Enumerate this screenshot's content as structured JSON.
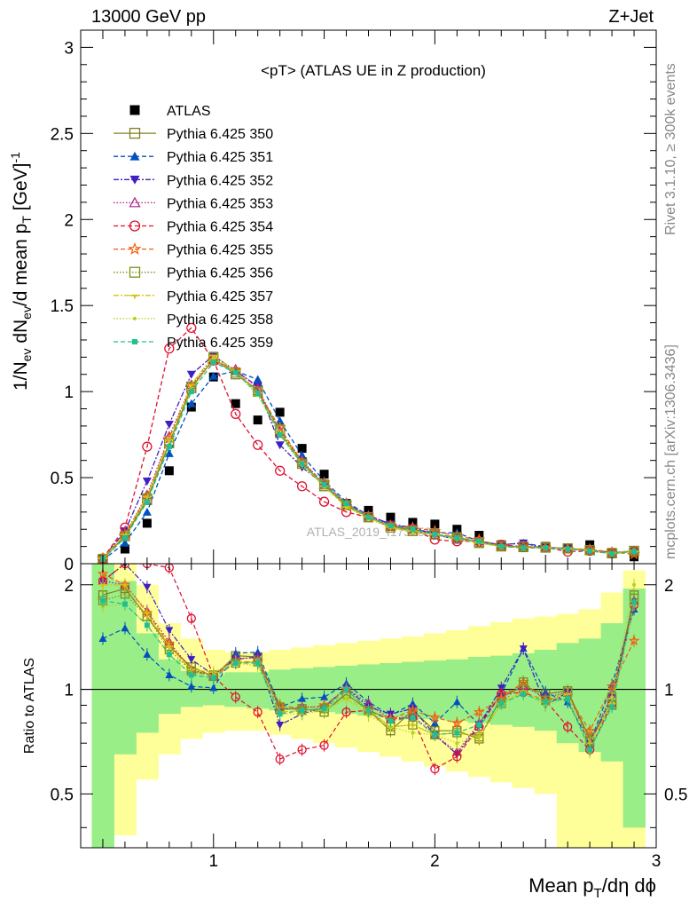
{
  "header": {
    "left": "13000 GeV pp",
    "right": "Z+Jet"
  },
  "side": {
    "top": "Rivet 3.1.10, ≥ 300k events",
    "bottom": "mcplots.cern.ch [arXiv:1306.3436]"
  },
  "watermark": "ATLAS_2019_I1736531",
  "chart_data": [
    {
      "type": "line",
      "title": "<pT> (ATLAS UE in Z production)",
      "ylabel": "1/N_ev dN_ev/d mean p_T [GeV]^-1",
      "xlim": [
        0.4,
        3.0
      ],
      "ylim": [
        0,
        3.1
      ],
      "yticks": [
        "0",
        "0.5",
        "1",
        "1.5",
        "2",
        "2.5",
        "3"
      ],
      "x": [
        0.5,
        0.6,
        0.7,
        0.8,
        0.9,
        1.0,
        1.1,
        1.2,
        1.3,
        1.4,
        1.5,
        1.6,
        1.7,
        1.8,
        1.9,
        2.0,
        2.1,
        2.2,
        2.3,
        2.4,
        2.5,
        2.6,
        2.7,
        2.8,
        2.9
      ],
      "series": [
        {
          "name": "ATLAS",
          "color": "#000000",
          "marker": "square-filled",
          "dash": "none",
          "values": [
            0.015,
            0.085,
            0.235,
            0.54,
            0.91,
            1.085,
            0.93,
            0.835,
            0.88,
            0.67,
            0.52,
            0.35,
            0.31,
            0.27,
            0.24,
            0.23,
            0.2,
            0.165,
            0.11,
            0.095,
            0.1,
            0.09,
            0.11,
            0.065,
            0.04
          ]
        },
        {
          "name": "Pythia 6.425 350",
          "color": "#808020",
          "marker": "square-open",
          "dash": "none",
          "values": [
            0.028,
            0.16,
            0.37,
            0.7,
            1.02,
            1.19,
            1.1,
            1.01,
            0.76,
            0.59,
            0.45,
            0.34,
            0.27,
            0.22,
            0.19,
            0.17,
            0.155,
            0.125,
            0.105,
            0.096,
            0.094,
            0.089,
            0.079,
            0.06,
            0.075
          ]
        },
        {
          "name": "Pythia 6.425 351",
          "color": "#0050c0",
          "marker": "triangle-up",
          "dash": "5,3",
          "values": [
            0.021,
            0.12,
            0.3,
            0.64,
            0.93,
            1.09,
            1.12,
            1.07,
            0.83,
            0.63,
            0.48,
            0.36,
            0.28,
            0.23,
            0.2,
            0.18,
            0.18,
            0.13,
            0.11,
            0.12,
            0.098,
            0.084,
            0.077,
            0.067,
            0.068
          ]
        },
        {
          "name": "Pythia 6.425 352",
          "color": "#4020c0",
          "marker": "triangle-down",
          "dash": "6,2,2,2",
          "values": [
            0.03,
            0.19,
            0.48,
            0.81,
            1.1,
            1.21,
            1.12,
            1.03,
            0.69,
            0.56,
            0.46,
            0.35,
            0.28,
            0.23,
            0.21,
            0.17,
            0.14,
            0.13,
            0.11,
            0.12,
            0.089,
            0.088,
            0.077,
            0.062,
            0.07
          ]
        },
        {
          "name": "Pythia 6.425 353",
          "color": "#b0208c",
          "marker": "triangle-open",
          "dash": "1.5,2",
          "values": [
            0.03,
            0.17,
            0.4,
            0.74,
            1.04,
            1.18,
            1.13,
            1.02,
            0.77,
            0.6,
            0.46,
            0.35,
            0.28,
            0.22,
            0.2,
            0.17,
            0.14,
            0.13,
            0.105,
            0.1,
            0.095,
            0.088,
            0.077,
            0.063,
            0.072
          ]
        },
        {
          "name": "Pythia 6.425 354",
          "color": "#e01030",
          "marker": "circle-open",
          "dash": "5,3",
          "values": [
            0.03,
            0.21,
            0.68,
            1.25,
            1.37,
            1.18,
            0.87,
            0.69,
            0.54,
            0.45,
            0.36,
            0.3,
            0.27,
            0.22,
            0.2,
            0.14,
            0.13,
            0.13,
            0.11,
            0.098,
            0.095,
            0.07,
            0.074,
            0.059,
            0.071
          ]
        },
        {
          "name": "Pythia 6.425 355",
          "color": "#f06010",
          "marker": "star-open",
          "dash": "5,3",
          "values": [
            0.032,
            0.17,
            0.39,
            0.73,
            1.03,
            1.18,
            1.12,
            1.0,
            0.79,
            0.59,
            0.47,
            0.35,
            0.27,
            0.22,
            0.21,
            0.19,
            0.16,
            0.14,
            0.1,
            0.1,
            0.093,
            0.086,
            0.084,
            0.067,
            0.055
          ]
        },
        {
          "name": "Pythia 6.425 356",
          "color": "#80901c",
          "marker": "square-open",
          "dash": "1.5,2",
          "values": [
            0.027,
            0.16,
            0.38,
            0.7,
            1.03,
            1.2,
            1.11,
            1.0,
            0.78,
            0.58,
            0.46,
            0.34,
            0.27,
            0.21,
            0.19,
            0.17,
            0.15,
            0.12,
            0.1,
            0.1,
            0.093,
            0.088,
            0.078,
            0.062,
            0.073
          ]
        },
        {
          "name": "Pythia 6.425 357",
          "color": "#d8c010",
          "marker": "tri-mark",
          "dash": "6,2,2,2",
          "values": [
            0.03,
            0.17,
            0.39,
            0.72,
            1.04,
            1.21,
            1.12,
            0.99,
            0.76,
            0.58,
            0.45,
            0.33,
            0.27,
            0.21,
            0.19,
            0.17,
            0.15,
            0.12,
            0.1,
            0.094,
            0.092,
            0.087,
            0.077,
            0.059,
            0.07
          ]
        },
        {
          "name": "Pythia 6.425 358",
          "color": "#b8d020",
          "marker": "dot",
          "dash": "1.5,2",
          "values": [
            0.026,
            0.15,
            0.36,
            0.68,
            1.01,
            1.19,
            1.11,
            0.98,
            0.75,
            0.57,
            0.45,
            0.33,
            0.26,
            0.21,
            0.18,
            0.17,
            0.14,
            0.12,
            0.1,
            0.093,
            0.09,
            0.085,
            0.073,
            0.062,
            0.08
          ]
        },
        {
          "name": "Pythia 6.425 359",
          "color": "#20c090",
          "marker": "square-small",
          "dash": "5,3",
          "values": [
            0.027,
            0.15,
            0.36,
            0.68,
            1.0,
            1.17,
            1.11,
            0.99,
            0.75,
            0.58,
            0.46,
            0.35,
            0.27,
            0.22,
            0.2,
            0.17,
            0.15,
            0.13,
            0.1,
            0.092,
            0.092,
            0.085,
            0.074,
            0.058,
            0.071
          ]
        }
      ]
    },
    {
      "type": "line",
      "ylabel": "Ratio to ATLAS",
      "xlabel": "Mean p_T/dη dϕ",
      "xlim": [
        0.4,
        3.0
      ],
      "ylim": [
        0.35,
        2.3
      ],
      "yticks": [
        "0.5",
        "1",
        "2"
      ],
      "xticks": [
        "1",
        "2",
        "3"
      ],
      "band_edges": [
        0.45,
        0.55,
        0.65,
        0.75,
        0.85,
        0.95,
        1.05,
        1.15,
        1.25,
        1.35,
        1.45,
        1.55,
        1.65,
        1.75,
        1.85,
        1.95,
        2.05,
        2.15,
        2.25,
        2.35,
        2.45,
        2.55,
        2.65,
        2.75,
        2.85,
        2.95
      ],
      "band_stat": [
        [
          0.35,
          2.3
        ],
        [
          0.65,
          2.05
        ],
        [
          0.75,
          1.45
        ],
        [
          0.85,
          1.22
        ],
        [
          0.89,
          1.13
        ],
        [
          0.9,
          1.1
        ],
        [
          0.89,
          1.12
        ],
        [
          0.88,
          1.12
        ],
        [
          0.87,
          1.14
        ],
        [
          0.87,
          1.15
        ],
        [
          0.86,
          1.16
        ],
        [
          0.85,
          1.17
        ],
        [
          0.84,
          1.18
        ],
        [
          0.83,
          1.19
        ],
        [
          0.82,
          1.2
        ],
        [
          0.82,
          1.21
        ],
        [
          0.81,
          1.22
        ],
        [
          0.8,
          1.24
        ],
        [
          0.79,
          1.25
        ],
        [
          0.78,
          1.27
        ],
        [
          0.76,
          1.3
        ],
        [
          0.7,
          1.36
        ],
        [
          0.66,
          1.4
        ],
        [
          0.62,
          1.55
        ],
        [
          0.4,
          1.95
        ]
      ],
      "band_total": [
        [
          0.35,
          2.3
        ],
        [
          0.38,
          2.3
        ],
        [
          0.55,
          2.0
        ],
        [
          0.65,
          1.55
        ],
        [
          0.72,
          1.4
        ],
        [
          0.75,
          1.3
        ],
        [
          0.76,
          1.28
        ],
        [
          0.76,
          1.28
        ],
        [
          0.74,
          1.3
        ],
        [
          0.72,
          1.32
        ],
        [
          0.7,
          1.34
        ],
        [
          0.68,
          1.36
        ],
        [
          0.66,
          1.38
        ],
        [
          0.64,
          1.4
        ],
        [
          0.62,
          1.42
        ],
        [
          0.6,
          1.45
        ],
        [
          0.58,
          1.48
        ],
        [
          0.56,
          1.52
        ],
        [
          0.54,
          1.56
        ],
        [
          0.52,
          1.6
        ],
        [
          0.5,
          1.62
        ],
        [
          0.35,
          1.65
        ],
        [
          0.35,
          1.7
        ],
        [
          0.35,
          1.9
        ],
        [
          0.35,
          2.2
        ]
      ],
      "series": [
        {
          "name": "Pythia 6.425 350",
          "values": [
            1.87,
            1.95,
            1.62,
            1.33,
            1.16,
            1.09,
            1.25,
            1.24,
            0.88,
            0.88,
            0.86,
            0.97,
            0.87,
            0.76,
            0.87,
            0.76,
            0.76,
            0.72,
            0.95,
            1.02,
            0.97,
            0.99,
            0.72,
            0.9,
            1.87
          ]
        },
        {
          "name": "Pythia 6.425 351",
          "values": [
            1.4,
            1.5,
            1.26,
            1.1,
            1.02,
            1.01,
            1.27,
            1.28,
            0.89,
            0.94,
            0.95,
            1.04,
            0.92,
            0.84,
            0.91,
            0.8,
            0.92,
            0.79,
            0.97,
            1.31,
            0.98,
            0.92,
            0.7,
            1.03,
            1.7
          ]
        },
        {
          "name": "Pythia 6.425 352",
          "values": [
            2.05,
            2.3,
            1.97,
            1.48,
            1.22,
            1.1,
            1.22,
            1.24,
            0.79,
            0.85,
            0.89,
            1.01,
            0.89,
            0.85,
            0.88,
            0.74,
            0.65,
            0.79,
            1.01,
            1.31,
            0.9,
            0.98,
            0.7,
            0.95,
            1.75
          ]
        },
        {
          "name": "Pythia 6.425 353",
          "values": [
            2.05,
            2.0,
            1.68,
            1.37,
            1.14,
            1.09,
            1.23,
            1.23,
            0.87,
            0.89,
            0.89,
            1.01,
            0.91,
            0.82,
            0.84,
            0.74,
            0.66,
            0.8,
            0.97,
            1.02,
            0.95,
            0.98,
            0.7,
            0.97,
            1.8
          ]
        },
        {
          "name": "Pythia 6.425 354",
          "values": [
            2.05,
            2.3,
            2.3,
            2.24,
            1.6,
            1.09,
            0.95,
            0.86,
            0.63,
            0.67,
            0.69,
            0.86,
            0.87,
            0.82,
            0.83,
            0.59,
            0.64,
            0.78,
            0.97,
            0.98,
            0.93,
            0.78,
            0.67,
            0.91,
            1.75
          ]
        },
        {
          "name": "Pythia 6.425 355",
          "values": [
            2.15,
            2.0,
            1.66,
            1.35,
            1.13,
            1.09,
            1.2,
            1.2,
            0.9,
            0.88,
            0.9,
            1.0,
            0.87,
            0.82,
            0.87,
            0.83,
            0.8,
            0.86,
            0.94,
            1.05,
            0.93,
            0.96,
            0.76,
            1.02,
            1.38
          ]
        },
        {
          "name": "Pythia 6.425 356",
          "values": [
            1.8,
            1.88,
            1.62,
            1.3,
            1.13,
            1.1,
            1.19,
            1.2,
            0.89,
            0.87,
            0.88,
            0.97,
            0.87,
            0.78,
            0.79,
            0.74,
            0.75,
            0.73,
            0.91,
            1.05,
            0.93,
            0.98,
            0.71,
            0.95,
            1.83
          ]
        },
        {
          "name": "Pythia 6.425 357",
          "values": [
            2.0,
            2.0,
            1.66,
            1.33,
            1.14,
            1.12,
            1.2,
            1.19,
            0.86,
            0.87,
            0.87,
            0.94,
            0.87,
            0.78,
            0.79,
            0.74,
            0.75,
            0.73,
            0.91,
            0.99,
            0.92,
            0.97,
            0.7,
            0.91,
            1.75
          ]
        },
        {
          "name": "Pythia 6.425 358",
          "values": [
            1.73,
            1.76,
            1.53,
            1.26,
            1.11,
            1.1,
            1.19,
            1.17,
            0.85,
            0.85,
            0.87,
            0.94,
            0.84,
            0.78,
            0.75,
            0.74,
            0.7,
            0.73,
            0.91,
            0.98,
            0.9,
            0.94,
            0.66,
            0.95,
            2.0
          ]
        },
        {
          "name": "Pythia 6.425 359",
          "values": [
            1.8,
            1.76,
            1.53,
            1.26,
            1.1,
            1.08,
            1.19,
            1.19,
            0.85,
            0.87,
            0.88,
            1.0,
            0.87,
            0.81,
            0.83,
            0.74,
            0.75,
            0.79,
            0.91,
            0.97,
            0.92,
            0.94,
            0.67,
            0.89,
            1.78
          ]
        }
      ]
    }
  ]
}
